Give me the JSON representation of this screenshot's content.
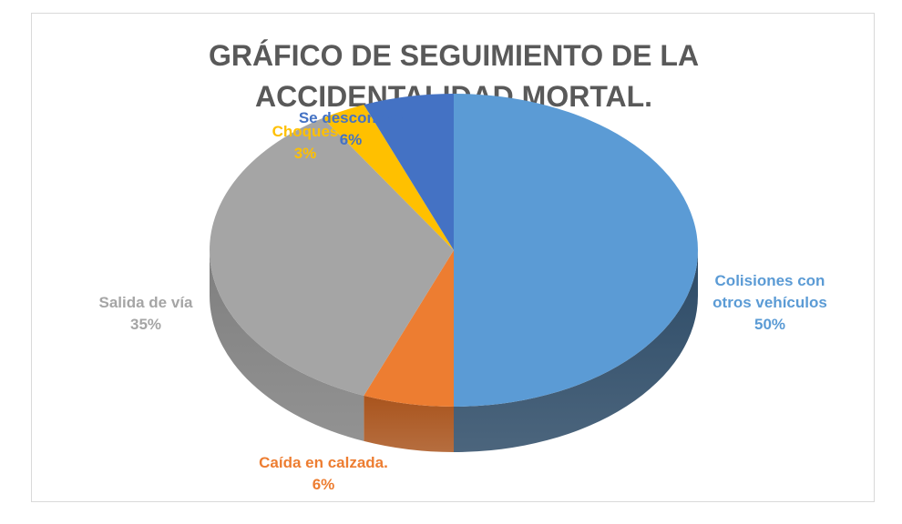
{
  "title": {
    "line1": "GRÁFICO DE SEGUIMIENTO DE LA",
    "line2": "ACCIDENTALIDAD MORTAL."
  },
  "chart_data": {
    "type": "pie",
    "title": "GRÁFICO DE SEGUIMIENTO DE LA ACCIDENTALIDAD MORTAL.",
    "style": "3d",
    "slices": [
      {
        "label": "Colisiones con otros vehículos",
        "label_lines": [
          "Colisiones con",
          "otros vehículos"
        ],
        "value": 50,
        "display": "50%",
        "color": "#5b9bd5",
        "side_color": "#2c4a66"
      },
      {
        "label": "Caída en calzada.",
        "label_lines": [
          "Caída en calzada."
        ],
        "value": 6,
        "display": "6%",
        "color": "#ed7d31",
        "side_color": "#a9541d"
      },
      {
        "label": "Salida de vía",
        "label_lines": [
          "Salida de vía"
        ],
        "value": 35,
        "display": "35%",
        "color": "#a5a5a5",
        "side_color": "#7f7f7f"
      },
      {
        "label": "Choques",
        "label_lines": [
          "Choques"
        ],
        "value": 3,
        "display": "3%",
        "color": "#ffc000",
        "side_color": "#b38600"
      },
      {
        "label": "Se desconoce",
        "label_lines": [
          "Se desconoce"
        ],
        "value": 6,
        "display": "6%",
        "color": "#4472c4",
        "side_color": "#2f5089"
      }
    ]
  }
}
